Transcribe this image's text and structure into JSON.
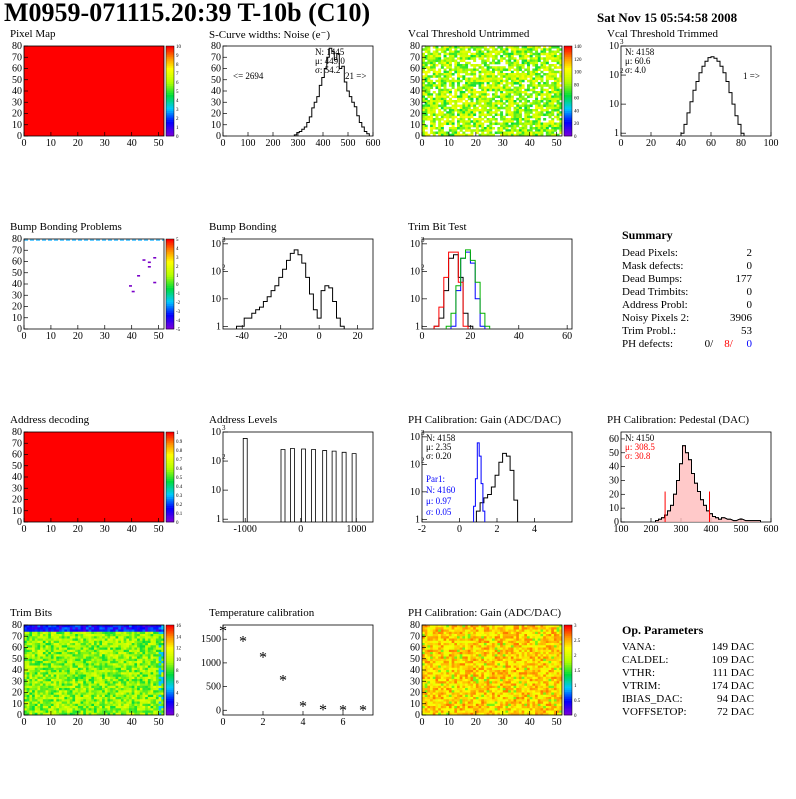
{
  "header": {
    "title": "M0959-071115.20:39 T-10b (C10)",
    "date": "Sat Nov 15 05:54:58 2008"
  },
  "colors": {
    "red": "#ff0000",
    "blue": "#0000ff",
    "green": "#00b000",
    "pink": "#ffbbbb"
  },
  "chart_data": [
    {
      "id": "pixelmap",
      "type": "heatmap",
      "title": "Pixel Map",
      "xlim": [
        0,
        52
      ],
      "ylim": [
        0,
        80
      ],
      "xticks": [
        0,
        10,
        20,
        30,
        40,
        50
      ],
      "yticks": [
        0,
        10,
        20,
        30,
        40,
        50,
        60,
        70,
        80
      ],
      "fill": "uniform",
      "fill_value": 10,
      "colorbar_ticks": [
        "10",
        "9",
        "8",
        "7",
        "6",
        "5",
        "4",
        "3",
        "2",
        "1",
        "0"
      ]
    },
    {
      "id": "noise",
      "type": "line",
      "title": "S-Curve widths: Noise (e⁻)",
      "xlim": [
        0,
        600
      ],
      "ylim": [
        0,
        80
      ],
      "xticks": [
        0,
        100,
        200,
        300,
        400,
        500,
        600
      ],
      "yticks": [
        0,
        10,
        20,
        30,
        40,
        50,
        60,
        70,
        80
      ],
      "x": [
        290,
        300,
        310,
        320,
        330,
        340,
        350,
        360,
        370,
        380,
        390,
        400,
        410,
        420,
        430,
        440,
        450,
        460,
        470,
        480,
        490,
        500,
        510,
        520,
        530,
        540,
        550,
        560,
        570,
        580
      ],
      "values": [
        1,
        3,
        4,
        6,
        8,
        12,
        17,
        25,
        30,
        35,
        45,
        52,
        60,
        70,
        78,
        75,
        68,
        73,
        60,
        62,
        48,
        40,
        35,
        30,
        26,
        18,
        12,
        8,
        4,
        2
      ],
      "stats": {
        "n": "N: 1445",
        "mean": "μ: 449.0",
        "sigma": "σ: 54.2"
      },
      "underflow": "<= 2694",
      "overflow": "21 =>"
    },
    {
      "id": "vcal_untrimmed",
      "type": "heatmap",
      "title": "Vcal Threshold Untrimmed",
      "xlim": [
        0,
        52
      ],
      "ylim": [
        0,
        80
      ],
      "xticks": [
        0,
        10,
        20,
        30,
        40,
        50
      ],
      "yticks": [
        0,
        10,
        20,
        30,
        40,
        50,
        60,
        70,
        80
      ],
      "fill": "noisy",
      "fill_value": 60,
      "colorbar_ticks": [
        "140",
        "120",
        "100",
        "80",
        "60",
        "40",
        "20",
        "0"
      ]
    },
    {
      "id": "vcal_trimmed",
      "type": "line",
      "title": "Vcal Threshold Trimmed",
      "log": true,
      "xlim": [
        0,
        100
      ],
      "ylim": [
        0.8,
        1000
      ],
      "xticks": [
        0,
        20,
        40,
        60,
        80,
        100
      ],
      "x": [
        41,
        43,
        45,
        47,
        49,
        51,
        53,
        55,
        57,
        59,
        61,
        63,
        65,
        67,
        69,
        71,
        73,
        75,
        77,
        79,
        81
      ],
      "values": [
        1,
        2,
        5,
        12,
        30,
        60,
        120,
        200,
        300,
        400,
        430,
        380,
        300,
        200,
        120,
        60,
        25,
        10,
        4,
        2,
        1
      ],
      "stats": {
        "n": "N: 4158",
        "mean": "μ: 60.6",
        "sigma": "σ: 4.0"
      },
      "overflow": "1 =>"
    },
    {
      "id": "bump_problems",
      "type": "heatmap",
      "title": "Bump Bonding Problems",
      "xlim": [
        0,
        52
      ],
      "ylim": [
        0,
        80
      ],
      "xticks": [
        0,
        10,
        20,
        30,
        40,
        50
      ],
      "yticks": [
        0,
        10,
        20,
        30,
        40,
        50,
        60,
        70,
        80
      ],
      "fill": "sparse",
      "marks": [
        [
          44,
          62
        ],
        [
          46,
          60
        ],
        [
          46,
          56
        ],
        [
          42,
          48
        ],
        [
          39,
          39
        ],
        [
          40,
          34
        ],
        [
          48,
          64
        ],
        [
          48,
          42
        ]
      ],
      "colorbar_ticks": [
        "5",
        "4",
        "3",
        "2",
        "1",
        "0",
        "-1",
        "-2",
        "-3",
        "-4",
        "-5"
      ]
    },
    {
      "id": "bump_bonding",
      "type": "line",
      "title": "Bump Bonding",
      "log": true,
      "xlim": [
        -50,
        28
      ],
      "ylim": [
        0.8,
        1500
      ],
      "xticks": [
        -40,
        -20,
        0,
        20
      ],
      "x": [
        -42,
        -40,
        -38,
        -36,
        -34,
        -32,
        -30,
        -28,
        -26,
        -24,
        -22,
        -20,
        -18,
        -16,
        -14,
        -12,
        -10,
        -8,
        -6,
        -4,
        -2,
        0,
        2,
        4,
        6,
        8,
        10,
        12
      ],
      "values": [
        1,
        1,
        2,
        2,
        3,
        4,
        5,
        8,
        12,
        20,
        30,
        60,
        120,
        250,
        450,
        600,
        400,
        200,
        60,
        15,
        4,
        2,
        20,
        30,
        25,
        8,
        2,
        1
      ]
    },
    {
      "id": "trimbit",
      "type": "line",
      "title": "Trim Bit Test",
      "log": true,
      "xlim": [
        0,
        62
      ],
      "ylim": [
        0.8,
        1500
      ],
      "xticks": [
        0,
        20,
        40,
        60
      ],
      "series": [
        {
          "color": "#000000",
          "x": [
            6,
            8,
            10,
            12,
            14,
            16,
            18,
            20
          ],
          "values": [
            1,
            2,
            20,
            300,
            400,
            60,
            3,
            1
          ]
        },
        {
          "color": "#ff0000",
          "x": [
            6,
            8,
            10,
            12,
            14,
            16,
            18
          ],
          "values": [
            1,
            5,
            60,
            500,
            500,
            40,
            1
          ]
        },
        {
          "color": "#0000ff",
          "x": [
            13,
            15,
            17,
            19,
            21,
            23,
            25
          ],
          "values": [
            1,
            20,
            300,
            500,
            200,
            10,
            1
          ]
        },
        {
          "color": "#00b000",
          "x": [
            11,
            13,
            15,
            17,
            19,
            21,
            23,
            25,
            27
          ],
          "values": [
            1,
            3,
            30,
            300,
            600,
            250,
            40,
            3,
            1
          ]
        }
      ]
    },
    {
      "id": "address_decoding",
      "type": "heatmap",
      "title": "Address decoding",
      "xlim": [
        0,
        52
      ],
      "ylim": [
        0,
        80
      ],
      "xticks": [
        0,
        10,
        20,
        30,
        40,
        50
      ],
      "yticks": [
        0,
        10,
        20,
        30,
        40,
        50,
        60,
        70,
        80
      ],
      "fill": "uniform",
      "fill_value": 1,
      "colorbar_ticks": [
        "1",
        "0.9",
        "0.8",
        "0.7",
        "0.6",
        "0.5",
        "0.4",
        "0.3",
        "0.2",
        "0.1",
        "0"
      ]
    },
    {
      "id": "address_levels",
      "type": "bar",
      "title": "Address Levels",
      "log": true,
      "xlim": [
        -1400,
        1300
      ],
      "ylim": [
        0.8,
        1000
      ],
      "xticks": [
        -1000,
        0,
        1000
      ],
      "peaks": [
        [
          -1000,
          600
        ],
        [
          -320,
          250
        ],
        [
          -150,
          270
        ],
        [
          50,
          260
        ],
        [
          230,
          250
        ],
        [
          430,
          230
        ],
        [
          600,
          220
        ],
        [
          780,
          200
        ],
        [
          960,
          180
        ]
      ]
    },
    {
      "id": "ph_gain",
      "type": "line",
      "title": "PH Calibration: Gain (ADC/DAC)",
      "log": true,
      "xlim": [
        -2,
        6
      ],
      "ylim": [
        0.8,
        1500
      ],
      "xticks": [
        -2,
        0,
        2,
        4
      ],
      "series": [
        {
          "color": "#000000",
          "x": [
            1.0,
            1.2,
            1.4,
            1.6,
            1.8,
            2.0,
            2.2,
            2.4,
            2.6,
            2.8,
            3.0
          ],
          "values": [
            2,
            4,
            6,
            8,
            15,
            40,
            120,
            250,
            200,
            60,
            5
          ]
        },
        {
          "color": "#0000ff",
          "x": [
            0.8,
            0.9,
            1.0,
            1.1,
            1.2,
            1.3
          ],
          "values": [
            3,
            30,
            600,
            200,
            20,
            2
          ]
        }
      ],
      "stats": {
        "n": "N: 4158",
        "mean": "μ: 2.35",
        "sigma": "σ: 0.20"
      },
      "par1": {
        "label": "Par1:",
        "n": "N: 4160",
        "mean": "μ: 0.97",
        "sigma": "σ: 0.05"
      }
    },
    {
      "id": "ph_pedestal",
      "type": "line",
      "title": "PH Calibration: Pedestal (DAC)",
      "xlim": [
        100,
        600
      ],
      "ylim": [
        0,
        65
      ],
      "xticks": [
        100,
        200,
        300,
        400,
        500,
        600
      ],
      "yticks": [
        0,
        10,
        20,
        30,
        40,
        50,
        60
      ],
      "x": [
        220,
        230,
        240,
        250,
        260,
        270,
        280,
        290,
        300,
        310,
        320,
        330,
        340,
        350,
        360,
        370,
        380,
        390,
        400,
        410,
        420,
        430,
        440,
        460,
        480,
        500,
        520,
        540,
        560
      ],
      "values": [
        1,
        2,
        3,
        5,
        8,
        12,
        20,
        30,
        42,
        55,
        50,
        45,
        35,
        28,
        22,
        16,
        12,
        8,
        6,
        4,
        3,
        2,
        3,
        2,
        1,
        2,
        1,
        1,
        1
      ],
      "stats": {
        "n": "N: 4150",
        "mean": "μ: 308.5",
        "sigma": "σ: 30.8"
      },
      "cuts": [
        247,
        395
      ]
    },
    {
      "id": "trim_bits",
      "type": "heatmap",
      "title": "Trim Bits",
      "xlim": [
        0,
        52
      ],
      "ylim": [
        0,
        80
      ],
      "xticks": [
        0,
        10,
        20,
        30,
        40,
        50
      ],
      "yticks": [
        0,
        10,
        20,
        30,
        40,
        50,
        60,
        70,
        80
      ],
      "fill": "noisy2",
      "colorbar_ticks": [
        "16",
        "14",
        "12",
        "10",
        "8",
        "6",
        "4",
        "2",
        "0"
      ]
    },
    {
      "id": "temperature",
      "type": "scatter",
      "title": "Temperature calibration",
      "xlim": [
        0,
        7.5
      ],
      "ylim": [
        -100,
        1800
      ],
      "xticks": [
        0,
        2,
        4,
        6
      ],
      "yticks": [
        0,
        500,
        1000,
        1500
      ],
      "x": [
        0,
        1,
        2,
        3,
        4,
        5,
        6,
        7
      ],
      "values": [
        1650,
        1430,
        1090,
        610,
        60,
        -20,
        -30,
        -30
      ]
    },
    {
      "id": "ph_gain2",
      "type": "heatmap",
      "title": "PH Calibration: Gain (ADC/DAC)",
      "xlim": [
        0,
        52
      ],
      "ylim": [
        0,
        80
      ],
      "xticks": [
        0,
        10,
        20,
        30,
        40,
        50
      ],
      "yticks": [
        0,
        10,
        20,
        30,
        40,
        50,
        60,
        70,
        80
      ],
      "fill": "noisy3",
      "colorbar_ticks": [
        "3",
        "2.5",
        "2",
        "1.5",
        "1",
        "0.5",
        "0"
      ]
    }
  ],
  "summary": {
    "title": "Summary",
    "rows": [
      {
        "label": "Dead Pixels:",
        "value": "2"
      },
      {
        "label": "Mask defects:",
        "value": "0"
      },
      {
        "label": "Dead Bumps:",
        "value": "177"
      },
      {
        "label": "Dead Trimbits:",
        "value": "0"
      },
      {
        "label": "Address Probl:",
        "value": "0"
      },
      {
        "label": "Noisy Pixels 2:",
        "value": "3906"
      },
      {
        "label": "Trim Probl.:",
        "value": "53"
      }
    ],
    "ph_label": "PH defects:",
    "ph_v1": "0/",
    "ph_v2": "8/",
    "ph_v3": "0"
  },
  "op_params": {
    "title": "Op. Parameters",
    "rows": [
      {
        "label": "VANA:",
        "value": "149 DAC"
      },
      {
        "label": "CALDEL:",
        "value": "109 DAC"
      },
      {
        "label": "VTHR:",
        "value": "111 DAC"
      },
      {
        "label": "VTRIM:",
        "value": "174 DAC"
      },
      {
        "label": "IBIAS_DAC:",
        "value": "94 DAC"
      },
      {
        "label": "VOFFSETOP:",
        "value": "72 DAC"
      }
    ]
  }
}
